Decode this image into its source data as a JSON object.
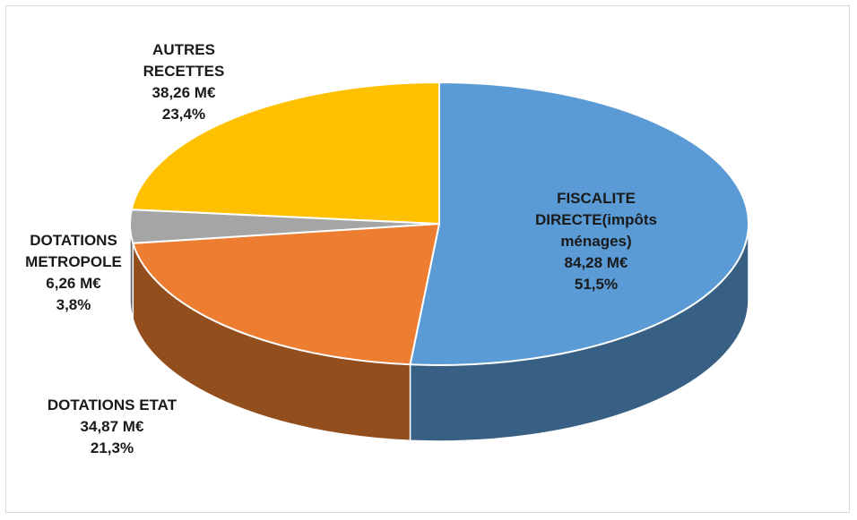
{
  "chart_data": {
    "type": "pie3d",
    "categories": [
      "FISCALITE DIRECTE(impôts ménages)",
      "DOTATIONS ETAT",
      "DOTATIONS METROPOLE",
      "AUTRES RECETTES"
    ],
    "values": [
      51.5,
      21.3,
      3.8,
      23.4
    ],
    "value_labels": [
      "51,5%",
      "21,3%",
      "3,8%",
      "23,4%"
    ],
    "amount_labels": [
      "84,28 M€",
      "34,87 M€",
      "6,26 M€",
      "38,26 M€"
    ],
    "colors": [
      "#5b9bd5",
      "#ed7d31",
      "#a5a5a5",
      "#ffc000"
    ]
  }
}
